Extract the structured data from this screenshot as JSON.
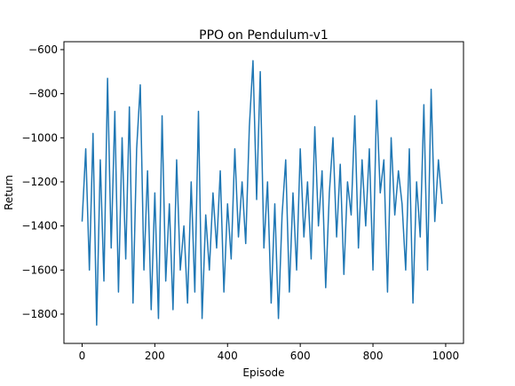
{
  "chart_data": {
    "type": "line",
    "title": "PPO on Pendulum-v1",
    "x_label": "Episode",
    "y_label": "Return",
    "x": [
      0,
      10,
      20,
      30,
      40,
      50,
      60,
      70,
      80,
      90,
      100,
      110,
      120,
      130,
      140,
      150,
      160,
      170,
      180,
      190,
      200,
      210,
      220,
      230,
      240,
      250,
      260,
      270,
      280,
      290,
      300,
      310,
      320,
      330,
      340,
      350,
      360,
      370,
      380,
      390,
      400,
      410,
      420,
      430,
      440,
      450,
      460,
      470,
      480,
      490,
      500,
      510,
      520,
      530,
      540,
      550,
      560,
      570,
      580,
      590,
      600,
      610,
      620,
      630,
      640,
      650,
      660,
      670,
      680,
      690,
      700,
      710,
      720,
      730,
      740,
      750,
      760,
      770,
      780,
      790,
      800,
      810,
      820,
      830,
      840,
      850,
      860,
      870,
      880,
      890,
      900,
      910,
      920,
      930,
      940,
      950,
      960,
      970,
      980,
      990
    ],
    "series": [
      {
        "name": "Return",
        "color": "#1f77b4",
        "values": [
          -1380,
          -1050,
          -1600,
          -980,
          -1850,
          -1100,
          -1650,
          -730,
          -1500,
          -880,
          -1700,
          -1000,
          -1550,
          -860,
          -1750,
          -1050,
          -760,
          -1600,
          -1150,
          -1780,
          -1250,
          -1820,
          -900,
          -1650,
          -1300,
          -1780,
          -1100,
          -1600,
          -1400,
          -1750,
          -1200,
          -1700,
          -880,
          -1820,
          -1350,
          -1600,
          -1250,
          -1500,
          -1150,
          -1700,
          -1300,
          -1550,
          -1050,
          -1450,
          -1200,
          -1480,
          -950,
          -650,
          -1280,
          -700,
          -1500,
          -1200,
          -1750,
          -1300,
          -1820,
          -1350,
          -1100,
          -1700,
          -1250,
          -1600,
          -1050,
          -1450,
          -1200,
          -1550,
          -950,
          -1400,
          -1150,
          -1680,
          -1250,
          -1000,
          -1450,
          -1120,
          -1620,
          -1200,
          -1350,
          -900,
          -1500,
          -1100,
          -1400,
          -1050,
          -1600,
          -830,
          -1250,
          -1100,
          -1700,
          -1000,
          -1350,
          -1150,
          -1300,
          -1600,
          -1050,
          -1750,
          -1200,
          -1450,
          -850,
          -1600,
          -780,
          -1380,
          -1100,
          -1300
        ]
      }
    ],
    "xlim": [
      -50,
      1049
    ],
    "ylim": [
      -1933,
      -564
    ],
    "xticks": [
      0,
      200,
      400,
      600,
      800,
      1000
    ],
    "yticks": [
      {
        "value": -1800,
        "label": "−1800"
      },
      {
        "value": -1600,
        "label": "−1600"
      },
      {
        "value": -1400,
        "label": "−1400"
      },
      {
        "value": -1200,
        "label": "−1200"
      },
      {
        "value": -1000,
        "label": "−1000"
      },
      {
        "value": -800,
        "label": "−800"
      },
      {
        "value": -600,
        "label": "−600"
      }
    ]
  }
}
